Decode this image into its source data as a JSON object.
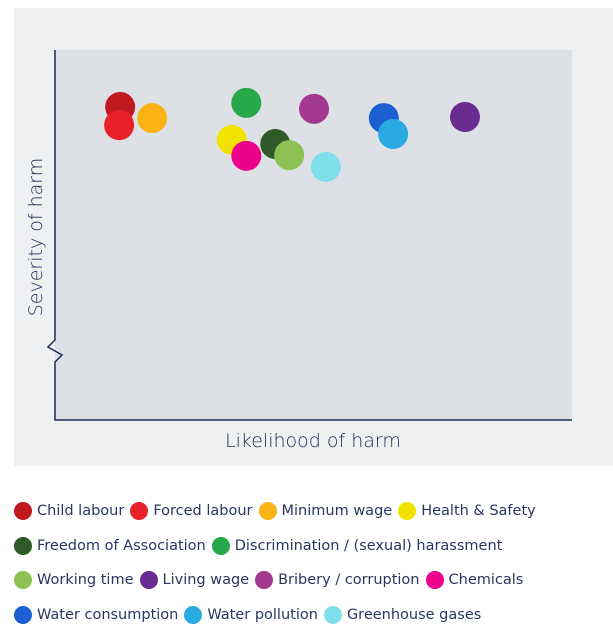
{
  "chart_data": {
    "type": "scatter",
    "xlabel": "Likelihood of harm",
    "ylabel": "Severity of harm",
    "xlim": [
      0,
      100
    ],
    "ylim": [
      0,
      100
    ],
    "series": [
      {
        "name": "Child labour",
        "color": "#c0191f",
        "x": [
          12.6
        ],
        "y": [
          84.6
        ]
      },
      {
        "name": "Forced labour",
        "color": "#e8202a",
        "x": [
          12.4
        ],
        "y": [
          79.7
        ]
      },
      {
        "name": "Minimum wage",
        "color": "#fbb316",
        "x": [
          18.8
        ],
        "y": [
          81.6
        ]
      },
      {
        "name": "Health & Safety",
        "color": "#f2e200",
        "x": [
          34.2
        ],
        "y": [
          75.7
        ]
      },
      {
        "name": "Freedom of Association",
        "color": "#2d5a27",
        "x": [
          42.6
        ],
        "y": [
          74.6
        ]
      },
      {
        "name": "Discrimination / (sexual) harassment",
        "color": "#27a84a",
        "x": [
          37.0
        ],
        "y": [
          85.7
        ]
      },
      {
        "name": "Working time",
        "color": "#8dc153",
        "x": [
          45.3
        ],
        "y": [
          71.6
        ]
      },
      {
        "name": "Living wage",
        "color": "#6a2c91",
        "x": [
          79.3
        ],
        "y": [
          81.9
        ]
      },
      {
        "name": "Bribery / corruption",
        "color": "#a2388f",
        "x": [
          50.1
        ],
        "y": [
          84.1
        ]
      },
      {
        "name": "Chemicals",
        "color": "#ec008c",
        "x": [
          37.0
        ],
        "y": [
          71.4
        ]
      },
      {
        "name": "Water consumption",
        "color": "#1b5fd2",
        "x": [
          63.6
        ],
        "y": [
          81.6
        ]
      },
      {
        "name": "Water pollution",
        "color": "#29abe2",
        "x": [
          65.4
        ],
        "y": [
          77.3
        ]
      },
      {
        "name": "Greenhouse gases",
        "color": "#7fe0ec",
        "x": [
          52.4
        ],
        "y": [
          68.4
        ]
      }
    ]
  }
}
